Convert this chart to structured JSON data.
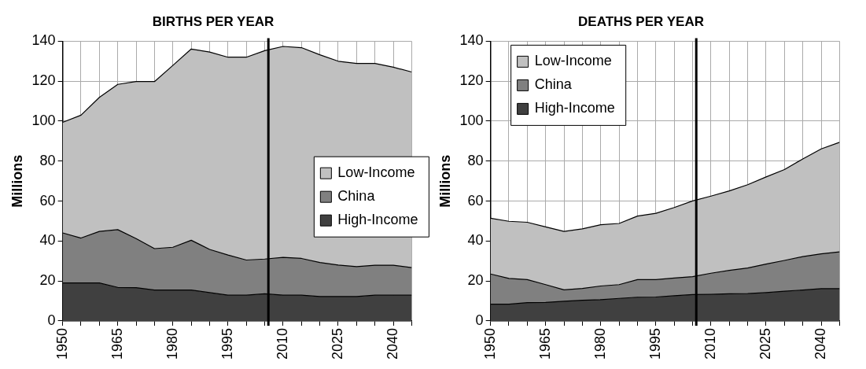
{
  "chart_data": [
    {
      "type": "area",
      "title": "BIRTHS PER YEAR",
      "ylabel": "Millions",
      "stacked": true,
      "grid": true,
      "legend": "right",
      "x": [
        1950,
        1955,
        1960,
        1965,
        1970,
        1975,
        1980,
        1985,
        1990,
        1995,
        2000,
        2005,
        2010,
        2015,
        2020,
        2025,
        2030,
        2035,
        2040,
        2045
      ],
      "series": [
        {
          "name": "High-Income",
          "color": "#404040",
          "values": [
            19.0,
            19.0,
            19.0,
            16.8,
            16.7,
            15.5,
            15.5,
            15.5,
            14.2,
            12.9,
            12.9,
            13.6,
            12.9,
            12.9,
            12.2,
            12.2,
            12.2,
            12.9,
            12.9,
            12.9
          ]
        },
        {
          "name": "China",
          "color": "#808080",
          "values": [
            25.1,
            22.5,
            25.8,
            28.9,
            24.5,
            20.7,
            21.4,
            24.9,
            21.6,
            20.1,
            17.6,
            17.4,
            18.9,
            18.4,
            17.1,
            15.8,
            15.0,
            15.0,
            15.0,
            13.8
          ]
        },
        {
          "name": "Low-Income",
          "color": "#c0c0c0",
          "values": [
            55.3,
            61.5,
            67.1,
            72.7,
            78.6,
            83.6,
            91.0,
            95.7,
            98.8,
            99.0,
            101.5,
            104.3,
            105.6,
            105.5,
            103.9,
            102.0,
            101.7,
            101.0,
            99.1,
            97.9
          ]
        }
      ],
      "xlim": [
        1950,
        2045
      ],
      "xticks": [
        1950,
        {
          "value": 1955,
          "label": null
        },
        {
          "value": 1960,
          "label": null
        },
        1965,
        {
          "value": 1970,
          "label": null
        },
        {
          "value": 1975,
          "label": null
        },
        1980,
        {
          "value": 1985,
          "label": null
        },
        {
          "value": 1990,
          "label": null
        },
        1995,
        {
          "value": 2000,
          "label": null
        },
        {
          "value": 2005,
          "label": null
        },
        2010,
        {
          "value": 2015,
          "label": null
        },
        {
          "value": 2020,
          "label": null
        },
        2025,
        {
          "value": 2030,
          "label": null
        },
        {
          "value": 2035,
          "label": null
        },
        2040,
        {
          "value": 2045,
          "label": null
        }
      ],
      "ylim": [
        0,
        140
      ],
      "yticks": [
        0,
        20,
        40,
        60,
        80,
        100,
        120,
        140
      ],
      "ref_lines": [
        {
          "axis": "x",
          "value": 2006,
          "color": "#000000"
        }
      ]
    },
    {
      "type": "area",
      "title": "DEATHS PER YEAR",
      "ylabel": "Millions",
      "stacked": true,
      "grid": true,
      "legend": "top left",
      "x": [
        1950,
        1955,
        1960,
        1965,
        1970,
        1975,
        1980,
        1985,
        1990,
        1995,
        2000,
        2005,
        2010,
        2015,
        2020,
        2025,
        2030,
        2035,
        2040,
        2045
      ],
      "series": [
        {
          "name": "High-Income",
          "color": "#404040",
          "values": [
            8.4,
            8.4,
            9.2,
            9.3,
            9.9,
            10.4,
            10.7,
            11.3,
            11.9,
            12.0,
            12.6,
            13.2,
            13.3,
            13.6,
            13.7,
            14.2,
            14.9,
            15.5,
            16.2,
            16.2
          ]
        },
        {
          "name": "China",
          "color": "#808080",
          "values": [
            15.1,
            12.9,
            11.5,
            8.9,
            5.7,
            5.9,
            6.8,
            6.9,
            8.8,
            8.7,
            8.9,
            9.0,
            10.6,
            11.7,
            12.8,
            14.3,
            15.4,
            16.7,
            17.4,
            18.4
          ]
        },
        {
          "name": "Low-Income",
          "color": "#c0c0c0",
          "values": [
            27.9,
            28.6,
            28.7,
            28.9,
            29.2,
            29.8,
            30.7,
            30.6,
            31.8,
            33.2,
            35.3,
            37.9,
            38.6,
            39.8,
            41.7,
            43.6,
            45.5,
            48.9,
            52.5,
            54.8
          ]
        }
      ],
      "xlim": [
        1950,
        2045
      ],
      "xticks": [
        1950,
        {
          "value": 1955,
          "label": null
        },
        {
          "value": 1960,
          "label": null
        },
        1965,
        {
          "value": 1970,
          "label": null
        },
        {
          "value": 1975,
          "label": null
        },
        1980,
        {
          "value": 1985,
          "label": null
        },
        {
          "value": 1990,
          "label": null
        },
        1995,
        {
          "value": 2000,
          "label": null
        },
        {
          "value": 2005,
          "label": null
        },
        2010,
        {
          "value": 2015,
          "label": null
        },
        {
          "value": 2020,
          "label": null
        },
        2025,
        {
          "value": 2030,
          "label": null
        },
        {
          "value": 2035,
          "label": null
        },
        2040,
        {
          "value": 2045,
          "label": null
        }
      ],
      "ylim": [
        0,
        140
      ],
      "yticks": [
        0,
        20,
        40,
        60,
        80,
        100,
        120,
        140
      ],
      "ref_lines": [
        {
          "axis": "x",
          "value": 2006,
          "color": "#000000"
        }
      ]
    }
  ]
}
